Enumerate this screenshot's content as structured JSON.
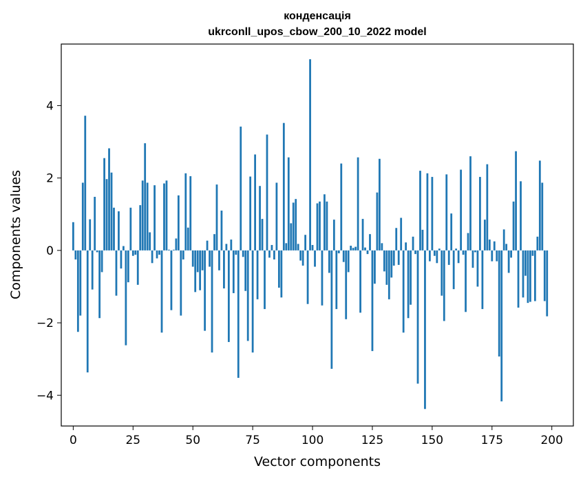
{
  "chart_data": {
    "type": "bar",
    "title": "конденсація",
    "subtitle": "ukrconll_upos_cbow_200_10_2022 model",
    "xlabel": "Vector components",
    "ylabel": "Components values",
    "xlim": [
      -5,
      209
    ],
    "ylim": [
      -4.85,
      5.7
    ],
    "xticks": [
      0,
      25,
      50,
      75,
      100,
      125,
      150,
      175,
      200
    ],
    "yticks": [
      -4,
      -2,
      0,
      2,
      4
    ],
    "ytick_labels": [
      "−4",
      "−2",
      "0",
      "2",
      "4"
    ],
    "bar_color": "#1f77b4",
    "grid": false,
    "values": [
      0.78,
      -0.25,
      -2.25,
      -1.8,
      1.87,
      3.72,
      -3.37,
      0.86,
      -1.08,
      1.48,
      -0.05,
      -1.87,
      -0.6,
      2.55,
      1.97,
      2.82,
      2.15,
      1.18,
      -1.25,
      1.08,
      -0.5,
      0.12,
      -2.62,
      -0.88,
      1.18,
      -0.15,
      -0.12,
      -0.95,
      1.25,
      1.93,
      2.96,
      1.87,
      0.5,
      -0.35,
      1.8,
      -0.22,
      -0.12,
      -2.27,
      1.85,
      1.93,
      0.02,
      -1.65,
      0.02,
      0.33,
      1.52,
      -1.8,
      -0.25,
      2.13,
      0.63,
      2.05,
      -0.45,
      -1.15,
      -0.6,
      -1.1,
      -0.55,
      -2.22,
      0.27,
      -0.45,
      -2.82,
      0.45,
      1.82,
      -0.55,
      1.1,
      -1.05,
      0.18,
      -2.53,
      0.3,
      -1.18,
      -0.12,
      -3.52,
      3.42,
      -0.18,
      -1.12,
      -2.5,
      2.04,
      -2.82,
      2.65,
      -1.35,
      1.78,
      0.87,
      -1.62,
      3.2,
      -0.2,
      0.15,
      -0.25,
      1.87,
      -1.03,
      -1.3,
      3.52,
      0.2,
      2.57,
      0.75,
      1.32,
      1.42,
      0.18,
      -0.28,
      -0.42,
      0.43,
      -1.48,
      5.28,
      0.15,
      -0.45,
      1.3,
      1.35,
      -1.52,
      1.55,
      1.35,
      -0.62,
      -3.27,
      0.85,
      -1.62,
      -0.08,
      2.4,
      -0.32,
      -1.9,
      -0.6,
      0.13,
      0.07,
      0.1,
      2.57,
      -1.72,
      0.87,
      0.08,
      -0.1,
      0.45,
      -2.78,
      -0.92,
      1.6,
      2.53,
      0.2,
      -0.58,
      -0.95,
      -1.35,
      -0.75,
      -0.42,
      0.62,
      -0.4,
      0.9,
      -2.27,
      0.22,
      -1.87,
      -1.5,
      0.38,
      -0.1,
      -3.68,
      2.2,
      0.57,
      -4.38,
      2.13,
      -0.3,
      2.03,
      -0.15,
      -0.35,
      0.05,
      -1.25,
      -1.95,
      2.1,
      -0.4,
      1.02,
      -1.07,
      0.05,
      -0.35,
      2.23,
      -0.12,
      -1.7,
      0.48,
      2.6,
      -0.48,
      -0.05,
      -1.0,
      2.03,
      -1.62,
      0.85,
      2.38,
      0.3,
      -0.3,
      0.25,
      -0.3,
      -2.93,
      -4.17,
      0.58,
      0.18,
      -0.62,
      -0.2,
      1.35,
      2.74,
      -1.58,
      1.91,
      -1.3,
      -0.7,
      -1.45,
      -1.42,
      -0.15,
      -1.4,
      0.38,
      2.48,
      1.87,
      -1.4,
      -1.82
    ]
  }
}
